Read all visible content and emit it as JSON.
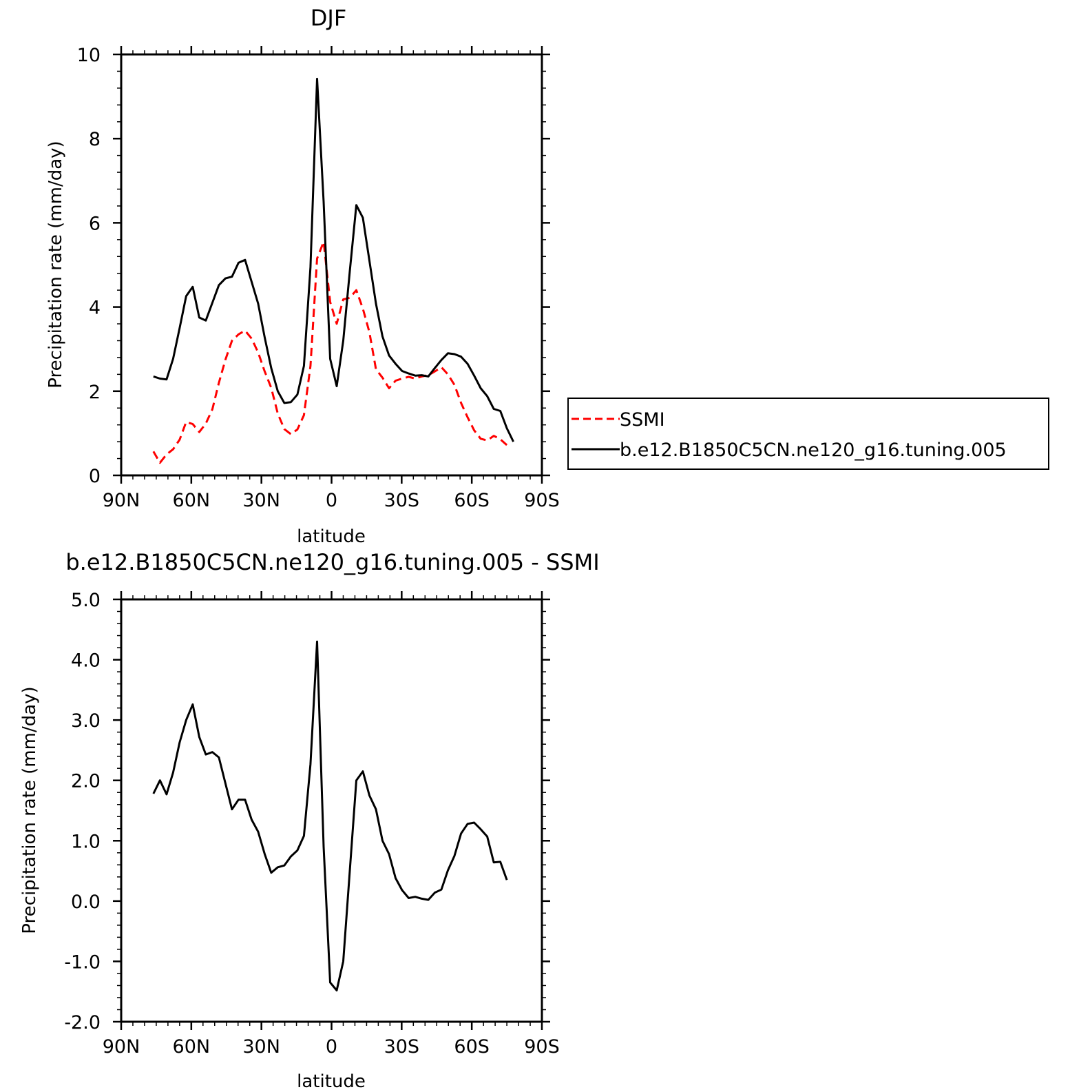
{
  "chart_data": [
    {
      "type": "line",
      "title": "DJF",
      "xlabel": "latitude",
      "ylabel": "Precipitation rate (mm/day)",
      "xlim": [
        90,
        -90
      ],
      "ylim": [
        0,
        10
      ],
      "x_ticks": [
        90,
        60,
        30,
        0,
        -30,
        -60,
        -90
      ],
      "x_tick_labels": [
        "90N",
        "60N",
        "30N",
        "0",
        "30S",
        "60S",
        "90S"
      ],
      "y_ticks": [
        0,
        2,
        4,
        6,
        8,
        10
      ],
      "y_tick_labels": [
        "0",
        "2",
        "4",
        "6",
        "8",
        "10"
      ],
      "grid": false,
      "legend": {
        "placement": "right",
        "entries": [
          {
            "label": "SSMI",
            "color": "#ff0000",
            "style": "dashed"
          },
          {
            "label": "b.e12.B1850C5CN.ne120_g16.tuning.005",
            "color": "#000000",
            "style": "solid"
          }
        ]
      },
      "series": [
        {
          "name": "SSMI",
          "color": "#ff0000",
          "dash": "dashed",
          "x": [
            76.2,
            73.4,
            70.6,
            67.8,
            65.0,
            62.2,
            59.4,
            56.6,
            53.8,
            51.0,
            48.2,
            45.4,
            42.6,
            39.8,
            37.0,
            34.2,
            31.4,
            28.6,
            25.8,
            23.0,
            20.2,
            17.4,
            14.6,
            11.8,
            9.0,
            6.2,
            3.4,
            0.6,
            -2.2,
            -5.0,
            -7.8,
            -10.6,
            -13.4,
            -16.2,
            -19.0,
            -21.8,
            -24.6,
            -27.4,
            -30.2,
            -33.0,
            -35.8,
            -38.6,
            -41.4,
            -44.2,
            -47.0,
            -49.8,
            -52.6,
            -55.4,
            -58.2,
            -61.0,
            -63.8,
            -66.6,
            -69.4,
            -72.2,
            -75.0
          ],
          "y": [
            0.57,
            0.3,
            0.5,
            0.62,
            0.85,
            1.27,
            1.22,
            1.03,
            1.23,
            1.57,
            2.2,
            2.75,
            3.2,
            3.35,
            3.44,
            3.25,
            2.92,
            2.47,
            2.08,
            1.47,
            1.1,
            0.98,
            1.09,
            1.43,
            2.6,
            5.15,
            5.55,
            4.12,
            3.6,
            4.18,
            4.22,
            4.4,
            3.96,
            3.4,
            2.52,
            2.32,
            2.07,
            2.25,
            2.3,
            2.34,
            2.3,
            2.35,
            2.38,
            2.47,
            2.57,
            2.4,
            2.15,
            1.72,
            1.38,
            1.07,
            0.87,
            0.83,
            0.94,
            0.86,
            0.72
          ]
        },
        {
          "name": "b.e12.B1850C5CN.ne120_g16.tuning.005",
          "color": "#000000",
          "dash": "solid",
          "x": [
            76.2,
            73.4,
            70.6,
            67.8,
            65.0,
            62.2,
            59.4,
            56.6,
            53.8,
            51.0,
            48.2,
            45.4,
            42.6,
            39.8,
            37.0,
            34.2,
            31.4,
            28.6,
            25.8,
            23.0,
            20.2,
            17.4,
            14.6,
            11.8,
            9.0,
            6.2,
            3.4,
            0.6,
            -2.2,
            -5.0,
            -7.8,
            -10.6,
            -13.4,
            -16.2,
            -19.0,
            -21.8,
            -24.6,
            -27.4,
            -30.2,
            -33.0,
            -35.8,
            -38.6,
            -41.4,
            -44.2,
            -47.0,
            -49.8,
            -52.6,
            -55.4,
            -58.2,
            -61.0,
            -63.8,
            -66.6,
            -69.4,
            -72.2,
            -75.0,
            -77.8
          ],
          "y": [
            2.35,
            2.3,
            2.28,
            2.77,
            3.5,
            4.26,
            4.48,
            3.75,
            3.68,
            4.1,
            4.52,
            4.68,
            4.72,
            5.05,
            5.12,
            4.6,
            4.08,
            3.28,
            2.55,
            2.0,
            1.72,
            1.74,
            1.92,
            2.6,
            4.95,
            9.42,
            6.5,
            2.77,
            2.12,
            3.2,
            4.85,
            6.42,
            6.12,
            5.1,
            4.08,
            3.3,
            2.85,
            2.65,
            2.48,
            2.42,
            2.37,
            2.38,
            2.35,
            2.55,
            2.74,
            2.9,
            2.88,
            2.82,
            2.65,
            2.37,
            2.07,
            1.88,
            1.58,
            1.53,
            1.12,
            0.8
          ]
        }
      ]
    },
    {
      "type": "line",
      "title": "b.e12.B1850C5CN.ne120_g16.tuning.005 - SSMI",
      "xlabel": "latitude",
      "ylabel": "Precipitation rate (mm/day)",
      "xlim": [
        90,
        -90
      ],
      "ylim": [
        -2.0,
        5.0
      ],
      "x_ticks": [
        90,
        60,
        30,
        0,
        -30,
        -60,
        -90
      ],
      "x_tick_labels": [
        "90N",
        "60N",
        "30N",
        "0",
        "30S",
        "60S",
        "90S"
      ],
      "y_ticks": [
        -2.0,
        -1.0,
        0.0,
        1.0,
        2.0,
        3.0,
        4.0,
        5.0
      ],
      "y_tick_labels": [
        "-2.0",
        "-1.0",
        "0.0",
        "1.0",
        "2.0",
        "3.0",
        "4.0",
        "5.0"
      ],
      "grid": false,
      "series": [
        {
          "color": "#000000",
          "dash": "solid",
          "x": [
            76.2,
            73.4,
            70.6,
            67.8,
            65.0,
            62.2,
            59.4,
            56.6,
            53.8,
            51.0,
            48.2,
            45.4,
            42.6,
            39.8,
            37.0,
            34.2,
            31.4,
            28.6,
            25.8,
            23.0,
            20.2,
            17.4,
            14.6,
            11.8,
            9.0,
            6.2,
            3.4,
            0.6,
            -2.2,
            -5.0,
            -7.8,
            -10.6,
            -13.4,
            -16.2,
            -19.0,
            -21.8,
            -24.6,
            -27.4,
            -30.2,
            -33.0,
            -35.8,
            -38.6,
            -41.4,
            -44.2,
            -47.0,
            -49.8,
            -52.6,
            -55.4,
            -58.2,
            -61.0,
            -63.8,
            -66.6,
            -69.4,
            -72.2,
            -75.0
          ],
          "y": [
            1.78,
            2.0,
            1.77,
            2.13,
            2.63,
            3.0,
            3.26,
            2.72,
            2.43,
            2.47,
            2.38,
            1.95,
            1.52,
            1.68,
            1.68,
            1.35,
            1.15,
            0.78,
            0.47,
            0.56,
            0.59,
            0.74,
            0.84,
            1.08,
            2.27,
            4.3,
            0.9,
            -1.35,
            -1.48,
            -1.0,
            0.5,
            2.0,
            2.15,
            1.75,
            1.52,
            1.0,
            0.78,
            0.38,
            0.18,
            0.05,
            0.07,
            0.04,
            0.02,
            0.14,
            0.19,
            0.51,
            0.75,
            1.12,
            1.28,
            1.3,
            1.19,
            1.07,
            0.64,
            0.65,
            0.35
          ]
        }
      ]
    }
  ]
}
